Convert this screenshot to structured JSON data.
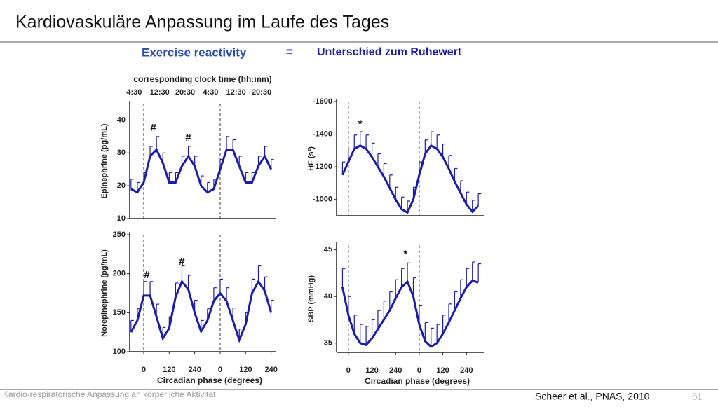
{
  "header": {
    "title": "Kardiovaskuläre Anpassung im Laufe des Tages",
    "subtitle": "Exercise reactivity",
    "equals": "=",
    "explanation": "Unterschied zum Ruhewert"
  },
  "footer": {
    "text": "Kardio-respiratorische Anpassung an körperliche Aktivität",
    "citation": "Scheer et al., PNAS, 2010",
    "page": "61"
  },
  "chart_data": [
    {
      "type": "line",
      "ylabel": "Epinephrine (pg/mL)",
      "xlim": [
        -66,
        621
      ],
      "ylim": [
        10,
        45
      ],
      "yticks": [
        10,
        20,
        30,
        40
      ],
      "top_axis": {
        "label": "corresponding clock time (hh:mm)",
        "ticks": [
          {
            "value": -45,
            "label": "4:30"
          },
          {
            "value": 75,
            "label": "12:30"
          },
          {
            "value": 195,
            "label": "20:30"
          },
          {
            "value": 315,
            "label": "4:30"
          },
          {
            "value": 435,
            "label": "12:30"
          },
          {
            "value": 555,
            "label": "20:30"
          }
        ]
      },
      "vlines": [
        0,
        360
      ],
      "x": [
        -60,
        -30,
        0,
        30,
        60,
        90,
        120,
        150,
        180,
        210,
        240,
        270,
        300,
        330,
        360,
        390,
        420,
        450,
        480,
        510,
        540,
        570,
        600
      ],
      "series": [
        {
          "color": "#1c1ca8",
          "values": [
            19,
            18,
            21,
            29,
            31,
            27,
            21,
            21,
            26,
            29,
            26,
            20,
            18,
            19,
            25,
            31,
            31,
            26,
            21,
            21,
            26,
            29,
            25
          ],
          "errors": [
            3,
            3,
            3,
            3,
            4,
            3,
            3,
            3,
            3,
            3,
            3,
            3,
            3,
            3,
            3,
            4,
            3,
            3,
            3,
            3,
            3,
            3,
            3
          ]
        }
      ],
      "annotations": [
        {
          "text": "#",
          "x": 45,
          "y": 37.5
        },
        {
          "text": "#",
          "x": 210,
          "y": 34.5
        }
      ]
    },
    {
      "type": "line",
      "ylabel": "HF (s²)",
      "xlim": [
        -60,
        688
      ],
      "ylim": [
        -1600,
        -900
      ],
      "yreverse": true,
      "yticks": [
        -1600,
        -1400,
        -1200,
        -1000
      ],
      "vlines": [
        0,
        360
      ],
      "x": [
        -30,
        0,
        30,
        60,
        90,
        120,
        150,
        180,
        210,
        240,
        270,
        300,
        330,
        360,
        390,
        420,
        450,
        480,
        510,
        540,
        570,
        600,
        630,
        660
      ],
      "series": [
        {
          "color": "#1c1ca8",
          "values": [
            -1150,
            -1230,
            -1310,
            -1330,
            -1310,
            -1260,
            -1200,
            -1140,
            -1070,
            -1000,
            -940,
            -920,
            -1000,
            -1150,
            -1280,
            -1330,
            -1310,
            -1260,
            -1190,
            -1110,
            -1040,
            -970,
            -925,
            -960
          ],
          "errors": [
            80,
            80,
            85,
            85,
            85,
            85,
            80,
            80,
            80,
            75,
            75,
            70,
            75,
            80,
            85,
            85,
            85,
            80,
            80,
            80,
            75,
            75,
            70,
            75
          ]
        }
      ],
      "annotations": [
        {
          "text": "*",
          "x": 60,
          "y": -1460
        }
      ]
    },
    {
      "type": "line",
      "ylabel": "Norepinephrine (pg/mL)",
      "xlim": [
        -66,
        621
      ],
      "ylim": [
        100,
        250
      ],
      "yticks": [
        100,
        150,
        200,
        250
      ],
      "xlabel": "Circadian phase (degrees)",
      "xticks": [
        0,
        120,
        240,
        {
          "value": 360,
          "label": "0"
        },
        {
          "value": 480,
          "label": "120"
        },
        {
          "value": 600,
          "label": "240"
        }
      ],
      "vlines": [
        0,
        360
      ],
      "x": [
        -60,
        -30,
        0,
        30,
        60,
        90,
        120,
        150,
        180,
        210,
        240,
        270,
        300,
        330,
        360,
        390,
        420,
        450,
        480,
        510,
        540,
        570,
        600
      ],
      "series": [
        {
          "color": "#1c1ca8",
          "values": [
            125,
            140,
            172,
            172,
            145,
            117,
            130,
            170,
            190,
            180,
            150,
            126,
            140,
            165,
            175,
            165,
            140,
            115,
            135,
            175,
            190,
            178,
            150
          ],
          "errors": [
            15,
            15,
            18,
            18,
            16,
            14,
            15,
            18,
            20,
            18,
            16,
            14,
            15,
            17,
            18,
            17,
            16,
            14,
            15,
            18,
            20,
            18,
            16
          ]
        }
      ],
      "annotations": [
        {
          "text": "#",
          "x": 15,
          "y": 198
        },
        {
          "text": "#",
          "x": 180,
          "y": 215
        }
      ]
    },
    {
      "type": "line",
      "ylabel": "SBP (mmHg)",
      "xlim": [
        -60,
        688
      ],
      "ylim": [
        34,
        45.5
      ],
      "yticks": [
        35,
        40,
        45
      ],
      "xlabel": "Circadian phase (degrees)",
      "xticks": [
        0,
        120,
        240,
        {
          "value": 360,
          "label": "0"
        },
        {
          "value": 480,
          "label": "120"
        },
        {
          "value": 600,
          "label": "240"
        }
      ],
      "vlines": [
        0,
        360
      ],
      "x": [
        -30,
        0,
        30,
        60,
        90,
        120,
        150,
        180,
        210,
        240,
        270,
        300,
        330,
        360,
        390,
        420,
        450,
        480,
        510,
        540,
        570,
        600,
        630,
        660
      ],
      "series": [
        {
          "color": "#1c1ca8",
          "values": [
            41,
            38,
            36,
            35,
            34.8,
            35.5,
            36.5,
            37.5,
            38.5,
            39.8,
            41,
            41.6,
            40,
            37,
            35.2,
            34.6,
            35,
            36,
            37.2,
            38.5,
            39.8,
            41,
            41.7,
            41.5
          ],
          "errors": [
            2,
            2,
            2,
            2,
            2,
            2,
            2,
            2,
            2,
            2,
            2,
            2,
            2,
            2,
            2,
            2,
            2,
            2,
            2,
            2,
            2,
            2,
            2,
            2
          ]
        }
      ],
      "annotations": [
        {
          "text": "*",
          "x": 290,
          "y": 44.5
        }
      ]
    }
  ]
}
